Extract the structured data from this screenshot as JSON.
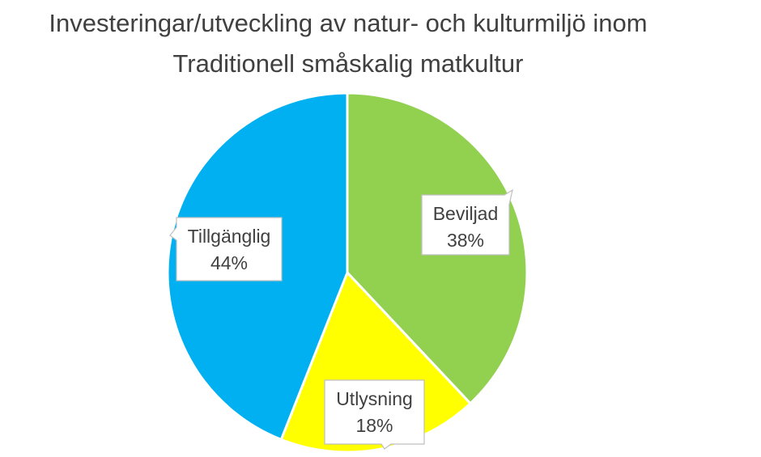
{
  "chart_data": {
    "type": "pie",
    "title": {
      "line1": "Investeringar/utveckling av natur- och kulturmiljö inom",
      "line2": "Traditionell småskalig matkultur"
    },
    "slices": [
      {
        "label": "Beviljad",
        "value": 38,
        "value_label": "38%",
        "color": "#92D050"
      },
      {
        "label": "Utlysning",
        "value": 18,
        "value_label": "18%",
        "color": "#FFFF00"
      },
      {
        "label": "Tillgänglig",
        "value": 44,
        "value_label": "44%",
        "color": "#00B0F0"
      }
    ],
    "start_angle": "12 o'clock",
    "direction": "clockwise",
    "slice_border_color": "#FFFFFF",
    "label_style": "callout boxes with category name and percentage",
    "legend": "none"
  }
}
